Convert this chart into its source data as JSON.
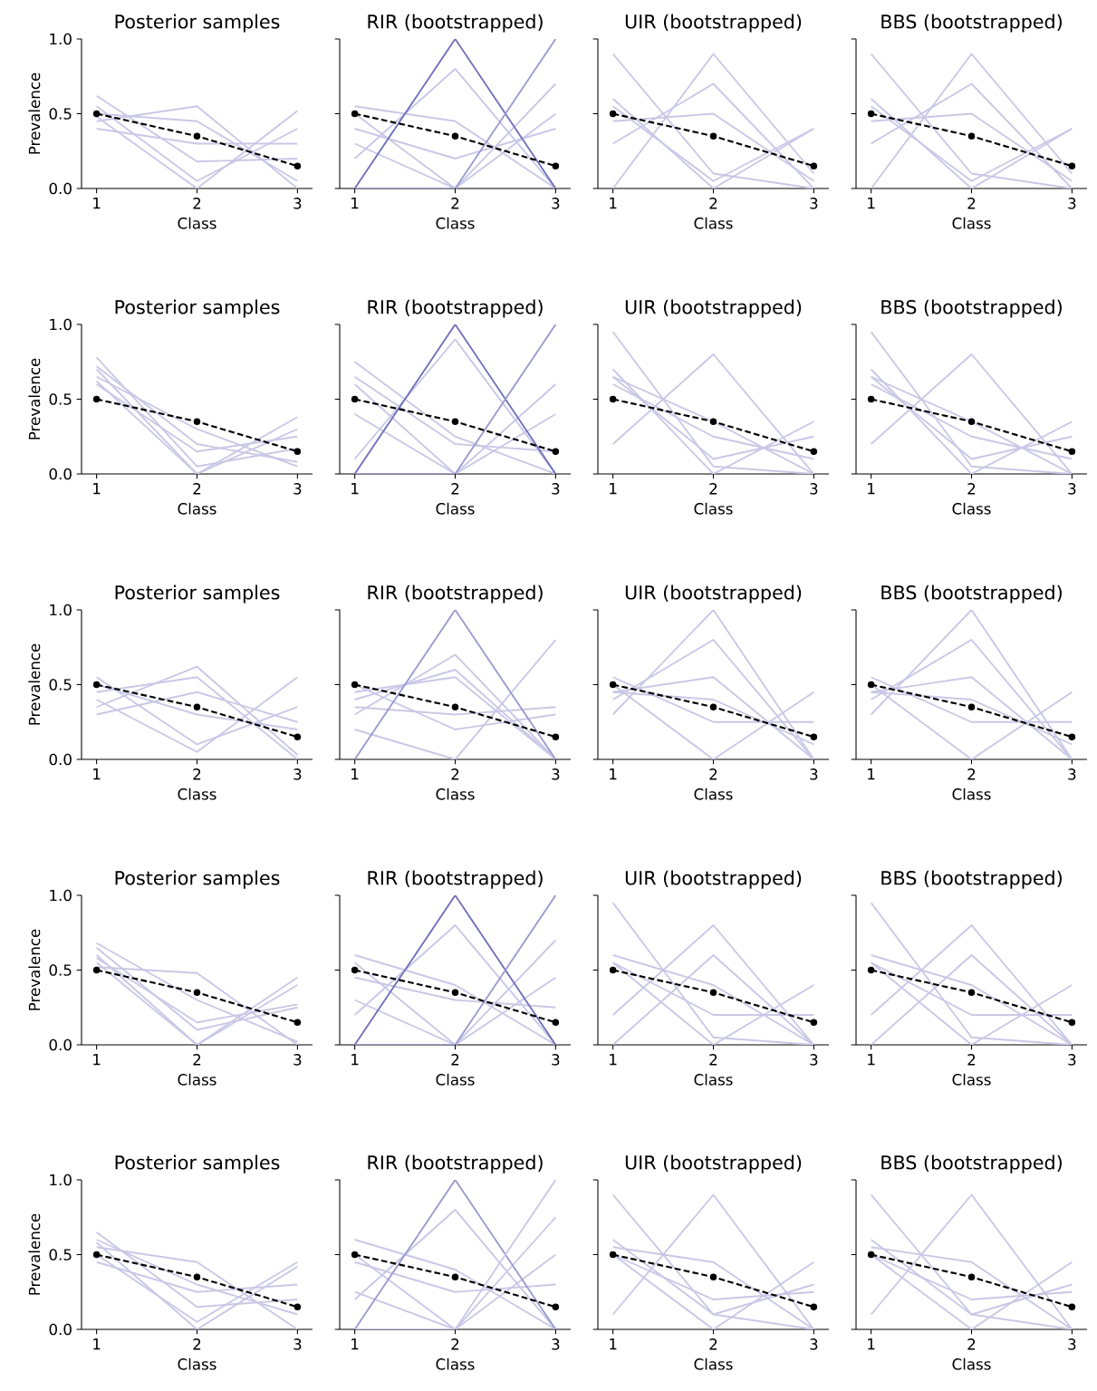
{
  "chart_data": [
    {
      "type": "line",
      "title": "Posterior samples",
      "xlabel": "Class",
      "ylabel": "Prevalence",
      "x": [
        1,
        2,
        3
      ],
      "xlim": [
        0.85,
        3.15
      ],
      "xticks": [
        1,
        2,
        3
      ],
      "ylim": [
        0,
        1
      ],
      "yticks": [
        {
          "value": 0,
          "label": "0.0"
        },
        {
          "value": 0.5,
          "label": "0.5"
        },
        {
          "value": 1,
          "label": "1.0"
        }
      ],
      "series": [
        {
          "color": "#c8c8e6",
          "values": [
            0.62,
            0.18,
            0.2
          ]
        },
        {
          "color": "#c8c8e6",
          "values": [
            0.45,
            0.55,
            0.0
          ]
        },
        {
          "color": "#c8c8e6",
          "values": [
            0.55,
            0.05,
            0.4
          ]
        },
        {
          "color": "#c8c8e6",
          "values": [
            0.4,
            0.3,
            0.3
          ]
        },
        {
          "color": "#c8c8e6",
          "values": [
            0.5,
            0.45,
            0.05
          ]
        },
        {
          "color": "#c8c8e6",
          "values": [
            0.48,
            0.0,
            0.52
          ]
        },
        {
          "color": "#000000",
          "values": [
            0.5,
            0.35,
            0.15
          ],
          "line_style": "dashed",
          "marker": "circle"
        }
      ]
    },
    {
      "type": "line",
      "title": "RIR (bootstrapped)",
      "xlabel": "Class",
      "tick_labels": "x",
      "x": [
        1,
        2,
        3
      ],
      "xlim": [
        0.85,
        3.15
      ],
      "xticks": [
        1,
        2,
        3
      ],
      "ylim": [
        0,
        1
      ],
      "yticks": [
        {
          "value": 0,
          "label": null
        },
        {
          "value": 0.5,
          "label": null
        },
        {
          "value": 1,
          "label": null
        }
      ],
      "series": [
        {
          "color": "#c8c8e6",
          "values": [
            0.55,
            0.45,
            0.0
          ]
        },
        {
          "color": "#c8c8e6",
          "values": [
            0.5,
            0.0,
            0.5
          ]
        },
        {
          "color": "#c8c8e6",
          "values": [
            0.2,
            0.8,
            0.0
          ]
        },
        {
          "color": "#c8c8e6",
          "values": [
            0.4,
            0.2,
            0.4
          ]
        },
        {
          "color": "#c8c8e6",
          "values": [
            0.3,
            0.0,
            0.7
          ]
        },
        {
          "color": "#7070bb",
          "values": [
            0.0,
            1.0,
            0.0
          ]
        },
        {
          "color": "#9a9acf",
          "values": [
            0.0,
            0.0,
            1.0
          ]
        },
        {
          "color": "#000000",
          "values": [
            0.5,
            0.35,
            0.15
          ],
          "line_style": "dashed",
          "marker": "circle"
        }
      ]
    },
    {
      "type": "line",
      "title": "UIR (bootstrapped)",
      "xlabel": "Class",
      "tick_labels": "x",
      "x": [
        1,
        2,
        3
      ],
      "xlim": [
        0.85,
        3.15
      ],
      "xticks": [
        1,
        2,
        3
      ],
      "ylim": [
        0,
        1
      ],
      "yticks": [
        {
          "value": 0,
          "label": null
        },
        {
          "value": 0.5,
          "label": null
        },
        {
          "value": 1,
          "label": null
        }
      ],
      "series": [
        {
          "color": "#c8c8e6",
          "values": [
            0.45,
            0.5,
            0.05
          ]
        },
        {
          "color": "#c8c8e6",
          "values": [
            0.55,
            0.05,
            0.4
          ]
        },
        {
          "color": "#c8c8e6",
          "values": [
            0.0,
            0.9,
            0.1
          ]
        },
        {
          "color": "#c8c8e6",
          "values": [
            0.9,
            0.1,
            0.0
          ]
        },
        {
          "color": "#c8c8e6",
          "values": [
            0.3,
            0.7,
            0.0
          ]
        },
        {
          "color": "#c8c8e6",
          "values": [
            0.6,
            0.0,
            0.4
          ]
        },
        {
          "color": "#000000",
          "values": [
            0.5,
            0.35,
            0.15
          ],
          "line_style": "dashed",
          "marker": "circle"
        }
      ]
    },
    {
      "type": "line",
      "title": "BBS (bootstrapped)",
      "xlabel": "Class",
      "tick_labels": "x",
      "x": [
        1,
        2,
        3
      ],
      "xlim": [
        0.85,
        3.15
      ],
      "xticks": [
        1,
        2,
        3
      ],
      "ylim": [
        0,
        1
      ],
      "yticks": [
        {
          "value": 0,
          "label": null
        },
        {
          "value": 0.5,
          "label": null
        },
        {
          "value": 1,
          "label": null
        }
      ],
      "series": [
        {
          "color": "#c8c8e6",
          "values": [
            0.45,
            0.5,
            0.05
          ]
        },
        {
          "color": "#c8c8e6",
          "values": [
            0.55,
            0.05,
            0.4
          ]
        },
        {
          "color": "#c8c8e6",
          "values": [
            0.0,
            0.9,
            0.1
          ]
        },
        {
          "color": "#c8c8e6",
          "values": [
            0.9,
            0.1,
            0.0
          ]
        },
        {
          "color": "#c8c8e6",
          "values": [
            0.3,
            0.7,
            0.0
          ]
        },
        {
          "color": "#c8c8e6",
          "values": [
            0.6,
            0.0,
            0.4
          ]
        },
        {
          "color": "#000000",
          "values": [
            0.5,
            0.35,
            0.15
          ],
          "line_style": "dashed",
          "marker": "circle"
        }
      ]
    },
    {
      "type": "line",
      "title": "Posterior samples",
      "xlabel": "Class",
      "ylabel": "Prevalence",
      "x": [
        1,
        2,
        3
      ],
      "xlim": [
        0.85,
        3.15
      ],
      "xticks": [
        1,
        2,
        3
      ],
      "ylim": [
        0,
        1
      ],
      "yticks": [
        {
          "value": 0,
          "label": "0.0"
        },
        {
          "value": 0.5,
          "label": "0.5"
        },
        {
          "value": 1,
          "label": "1.0"
        }
      ],
      "series": [
        {
          "color": "#c8c8e6",
          "values": [
            0.78,
            0.05,
            0.17
          ]
        },
        {
          "color": "#c8c8e6",
          "values": [
            0.65,
            0.3,
            0.05
          ]
        },
        {
          "color": "#c8c8e6",
          "values": [
            0.7,
            0.0,
            0.3
          ]
        },
        {
          "color": "#c8c8e6",
          "values": [
            0.6,
            0.15,
            0.25
          ]
        },
        {
          "color": "#c8c8e6",
          "values": [
            0.72,
            0.2,
            0.08
          ]
        },
        {
          "color": "#c8c8e6",
          "values": [
            0.62,
            0.0,
            0.38
          ]
        },
        {
          "color": "#000000",
          "values": [
            0.5,
            0.35,
            0.15
          ],
          "line_style": "dashed",
          "marker": "circle"
        }
      ]
    },
    {
      "type": "line",
      "title": "RIR (bootstrapped)",
      "xlabel": "Class",
      "tick_labels": "x",
      "x": [
        1,
        2,
        3
      ],
      "xlim": [
        0.85,
        3.15
      ],
      "xticks": [
        1,
        2,
        3
      ],
      "ylim": [
        0,
        1
      ],
      "yticks": [
        {
          "value": 0,
          "label": null
        },
        {
          "value": 0.5,
          "label": null
        },
        {
          "value": 1,
          "label": null
        }
      ],
      "series": [
        {
          "color": "#c8c8e6",
          "values": [
            0.75,
            0.25,
            0.0
          ]
        },
        {
          "color": "#c8c8e6",
          "values": [
            0.6,
            0.0,
            0.4
          ]
        },
        {
          "color": "#c8c8e6",
          "values": [
            0.1,
            0.9,
            0.0
          ]
        },
        {
          "color": "#c8c8e6",
          "values": [
            0.65,
            0.2,
            0.15
          ]
        },
        {
          "color": "#c8c8e6",
          "values": [
            0.4,
            0.0,
            0.6
          ]
        },
        {
          "color": "#7070bb",
          "values": [
            0.0,
            1.0,
            0.0
          ]
        },
        {
          "color": "#9a9acf",
          "values": [
            0.0,
            0.0,
            1.0
          ]
        },
        {
          "color": "#000000",
          "values": [
            0.5,
            0.35,
            0.15
          ],
          "line_style": "dashed",
          "marker": "circle"
        }
      ]
    },
    {
      "type": "line",
      "title": "UIR (bootstrapped)",
      "xlabel": "Class",
      "tick_labels": "x",
      "x": [
        1,
        2,
        3
      ],
      "xlim": [
        0.85,
        3.15
      ],
      "xticks": [
        1,
        2,
        3
      ],
      "ylim": [
        0,
        1
      ],
      "yticks": [
        {
          "value": 0,
          "label": null
        },
        {
          "value": 0.5,
          "label": null
        },
        {
          "value": 1,
          "label": null
        }
      ],
      "series": [
        {
          "color": "#c8c8e6",
          "values": [
            0.65,
            0.35,
            0.0
          ]
        },
        {
          "color": "#c8c8e6",
          "values": [
            0.7,
            0.0,
            0.35
          ]
        },
        {
          "color": "#c8c8e6",
          "values": [
            0.95,
            0.05,
            0.0
          ]
        },
        {
          "color": "#c8c8e6",
          "values": [
            0.2,
            0.8,
            0.0
          ]
        },
        {
          "color": "#c8c8e6",
          "values": [
            0.65,
            0.1,
            0.25
          ]
        },
        {
          "color": "#c8c8e6",
          "values": [
            0.6,
            0.25,
            0.1
          ]
        },
        {
          "color": "#000000",
          "values": [
            0.5,
            0.35,
            0.15
          ],
          "line_style": "dashed",
          "marker": "circle"
        }
      ]
    },
    {
      "type": "line",
      "title": "BBS (bootstrapped)",
      "xlabel": "Class",
      "tick_labels": "x",
      "x": [
        1,
        2,
        3
      ],
      "xlim": [
        0.85,
        3.15
      ],
      "xticks": [
        1,
        2,
        3
      ],
      "ylim": [
        0,
        1
      ],
      "yticks": [
        {
          "value": 0,
          "label": null
        },
        {
          "value": 0.5,
          "label": null
        },
        {
          "value": 1,
          "label": null
        }
      ],
      "series": [
        {
          "color": "#c8c8e6",
          "values": [
            0.65,
            0.35,
            0.0
          ]
        },
        {
          "color": "#c8c8e6",
          "values": [
            0.7,
            0.0,
            0.35
          ]
        },
        {
          "color": "#c8c8e6",
          "values": [
            0.95,
            0.05,
            0.0
          ]
        },
        {
          "color": "#c8c8e6",
          "values": [
            0.2,
            0.8,
            0.0
          ]
        },
        {
          "color": "#c8c8e6",
          "values": [
            0.65,
            0.1,
            0.25
          ]
        },
        {
          "color": "#c8c8e6",
          "values": [
            0.6,
            0.25,
            0.1
          ]
        },
        {
          "color": "#000000",
          "values": [
            0.5,
            0.35,
            0.15
          ],
          "line_style": "dashed",
          "marker": "circle"
        }
      ]
    },
    {
      "type": "line",
      "title": "Posterior samples",
      "xlabel": "Class",
      "ylabel": "Prevalence",
      "x": [
        1,
        2,
        3
      ],
      "xlim": [
        0.85,
        3.15
      ],
      "xticks": [
        1,
        2,
        3
      ],
      "ylim": [
        0,
        1
      ],
      "yticks": [
        {
          "value": 0,
          "label": "0.0"
        },
        {
          "value": 0.5,
          "label": "0.5"
        },
        {
          "value": 1,
          "label": "1.0"
        }
      ],
      "series": [
        {
          "color": "#c8c8e6",
          "values": [
            0.45,
            0.55,
            0.0
          ]
        },
        {
          "color": "#c8c8e6",
          "values": [
            0.35,
            0.62,
            0.03
          ]
        },
        {
          "color": "#c8c8e6",
          "values": [
            0.55,
            0.1,
            0.35
          ]
        },
        {
          "color": "#c8c8e6",
          "values": [
            0.4,
            0.05,
            0.55
          ]
        },
        {
          "color": "#c8c8e6",
          "values": [
            0.3,
            0.45,
            0.25
          ]
        },
        {
          "color": "#c8c8e6",
          "values": [
            0.5,
            0.3,
            0.2
          ]
        },
        {
          "color": "#000000",
          "values": [
            0.5,
            0.35,
            0.15
          ],
          "line_style": "dashed",
          "marker": "circle"
        }
      ]
    },
    {
      "type": "line",
      "title": "RIR (bootstrapped)",
      "xlabel": "Class",
      "tick_labels": "x",
      "x": [
        1,
        2,
        3
      ],
      "xlim": [
        0.85,
        3.15
      ],
      "xticks": [
        1,
        2,
        3
      ],
      "ylim": [
        0,
        1
      ],
      "yticks": [
        {
          "value": 0,
          "label": null
        },
        {
          "value": 0.5,
          "label": null
        },
        {
          "value": 1,
          "label": null
        }
      ],
      "series": [
        {
          "color": "#c8c8e6",
          "values": [
            0.45,
            0.55,
            0.0
          ]
        },
        {
          "color": "#c8c8e6",
          "values": [
            0.4,
            0.6,
            0.0
          ]
        },
        {
          "color": "#c8c8e6",
          "values": [
            0.3,
            0.7,
            0.0
          ]
        },
        {
          "color": "#c8c8e6",
          "values": [
            0.5,
            0.2,
            0.3
          ]
        },
        {
          "color": "#c8c8e6",
          "values": [
            0.2,
            0.0,
            0.8
          ]
        },
        {
          "color": "#c8c8e6",
          "values": [
            0.35,
            0.3,
            0.35
          ]
        },
        {
          "color": "#9a9acf",
          "values": [
            0.0,
            1.0,
            0.0
          ]
        },
        {
          "color": "#000000",
          "values": [
            0.5,
            0.35,
            0.15
          ],
          "line_style": "dashed",
          "marker": "circle"
        }
      ]
    },
    {
      "type": "line",
      "title": "UIR (bootstrapped)",
      "xlabel": "Class",
      "tick_labels": "x",
      "x": [
        1,
        2,
        3
      ],
      "xlim": [
        0.85,
        3.15
      ],
      "xticks": [
        1,
        2,
        3
      ],
      "ylim": [
        0,
        1
      ],
      "yticks": [
        {
          "value": 0,
          "label": null
        },
        {
          "value": 0.5,
          "label": null
        },
        {
          "value": 1,
          "label": null
        }
      ],
      "series": [
        {
          "color": "#c8c8e6",
          "values": [
            0.45,
            0.55,
            0.0
          ]
        },
        {
          "color": "#c8c8e6",
          "values": [
            0.4,
            0.8,
            0.0
          ]
        },
        {
          "color": "#c8c8e6",
          "values": [
            0.5,
            0.0,
            0.45
          ]
        },
        {
          "color": "#c8c8e6",
          "values": [
            0.3,
            1.0,
            0.0
          ]
        },
        {
          "color": "#c8c8e6",
          "values": [
            0.55,
            0.25,
            0.25
          ]
        },
        {
          "color": "#c8c8e6",
          "values": [
            0.45,
            0.4,
            0.1
          ]
        },
        {
          "color": "#000000",
          "values": [
            0.5,
            0.35,
            0.15
          ],
          "line_style": "dashed",
          "marker": "circle"
        }
      ]
    },
    {
      "type": "line",
      "title": "BBS (bootstrapped)",
      "xlabel": "Class",
      "tick_labels": "x",
      "x": [
        1,
        2,
        3
      ],
      "xlim": [
        0.85,
        3.15
      ],
      "xticks": [
        1,
        2,
        3
      ],
      "ylim": [
        0,
        1
      ],
      "yticks": [
        {
          "value": 0,
          "label": null
        },
        {
          "value": 0.5,
          "label": null
        },
        {
          "value": 1,
          "label": null
        }
      ],
      "series": [
        {
          "color": "#c8c8e6",
          "values": [
            0.45,
            0.55,
            0.0
          ]
        },
        {
          "color": "#c8c8e6",
          "values": [
            0.4,
            0.8,
            0.0
          ]
        },
        {
          "color": "#c8c8e6",
          "values": [
            0.5,
            0.0,
            0.45
          ]
        },
        {
          "color": "#c8c8e6",
          "values": [
            0.3,
            1.0,
            0.0
          ]
        },
        {
          "color": "#c8c8e6",
          "values": [
            0.55,
            0.25,
            0.25
          ]
        },
        {
          "color": "#c8c8e6",
          "values": [
            0.45,
            0.4,
            0.1
          ]
        },
        {
          "color": "#000000",
          "values": [
            0.5,
            0.35,
            0.15
          ],
          "line_style": "dashed",
          "marker": "circle"
        }
      ]
    },
    {
      "type": "line",
      "title": "Posterior samples",
      "xlabel": "Class",
      "ylabel": "Prevalence",
      "x": [
        1,
        2,
        3
      ],
      "xlim": [
        0.85,
        3.15
      ],
      "xticks": [
        1,
        2,
        3
      ],
      "ylim": [
        0,
        1
      ],
      "yticks": [
        {
          "value": 0,
          "label": "0.0"
        },
        {
          "value": 0.5,
          "label": "0.5"
        },
        {
          "value": 1,
          "label": "1.0"
        }
      ],
      "series": [
        {
          "color": "#c8c8e6",
          "values": [
            0.68,
            0.3,
            0.02
          ]
        },
        {
          "color": "#c8c8e6",
          "values": [
            0.6,
            0.0,
            0.4
          ]
        },
        {
          "color": "#c8c8e6",
          "values": [
            0.52,
            0.48,
            0.0
          ]
        },
        {
          "color": "#c8c8e6",
          "values": [
            0.58,
            0.15,
            0.27
          ]
        },
        {
          "color": "#c8c8e6",
          "values": [
            0.65,
            0.1,
            0.25
          ]
        },
        {
          "color": "#c8c8e6",
          "values": [
            0.55,
            0.0,
            0.45
          ]
        },
        {
          "color": "#000000",
          "values": [
            0.5,
            0.35,
            0.15
          ],
          "line_style": "dashed",
          "marker": "circle"
        }
      ]
    },
    {
      "type": "line",
      "title": "RIR (bootstrapped)",
      "xlabel": "Class",
      "tick_labels": "x",
      "x": [
        1,
        2,
        3
      ],
      "xlim": [
        0.85,
        3.15
      ],
      "xticks": [
        1,
        2,
        3
      ],
      "ylim": [
        0,
        1
      ],
      "yticks": [
        {
          "value": 0,
          "label": null
        },
        {
          "value": 0.5,
          "label": null
        },
        {
          "value": 1,
          "label": null
        }
      ],
      "series": [
        {
          "color": "#c8c8e6",
          "values": [
            0.6,
            0.4,
            0.0
          ]
        },
        {
          "color": "#c8c8e6",
          "values": [
            0.55,
            0.0,
            0.45
          ]
        },
        {
          "color": "#c8c8e6",
          "values": [
            0.2,
            0.8,
            0.0
          ]
        },
        {
          "color": "#c8c8e6",
          "values": [
            0.45,
            0.3,
            0.25
          ]
        },
        {
          "color": "#c8c8e6",
          "values": [
            0.3,
            0.0,
            0.7
          ]
        },
        {
          "color": "#7070bb",
          "values": [
            0.0,
            1.0,
            0.0
          ]
        },
        {
          "color": "#9a9acf",
          "values": [
            0.0,
            0.0,
            1.0
          ]
        },
        {
          "color": "#000000",
          "values": [
            0.5,
            0.35,
            0.15
          ],
          "line_style": "dashed",
          "marker": "circle"
        }
      ]
    },
    {
      "type": "line",
      "title": "UIR (bootstrapped)",
      "xlabel": "Class",
      "tick_labels": "x",
      "x": [
        1,
        2,
        3
      ],
      "xlim": [
        0.85,
        3.15
      ],
      "xticks": [
        1,
        2,
        3
      ],
      "ylim": [
        0,
        1
      ],
      "yticks": [
        {
          "value": 0,
          "label": null
        },
        {
          "value": 0.5,
          "label": null
        },
        {
          "value": 1,
          "label": null
        }
      ],
      "series": [
        {
          "color": "#c8c8e6",
          "values": [
            0.6,
            0.4,
            0.0
          ]
        },
        {
          "color": "#c8c8e6",
          "values": [
            0.55,
            0.0,
            0.4
          ]
        },
        {
          "color": "#c8c8e6",
          "values": [
            0.95,
            0.05,
            0.0
          ]
        },
        {
          "color": "#c8c8e6",
          "values": [
            0.2,
            0.8,
            0.0
          ]
        },
        {
          "color": "#c8c8e6",
          "values": [
            0.55,
            0.2,
            0.2
          ]
        },
        {
          "color": "#c8c8e6",
          "values": [
            0.0,
            0.6,
            0.0
          ]
        },
        {
          "color": "#000000",
          "values": [
            0.5,
            0.35,
            0.15
          ],
          "line_style": "dashed",
          "marker": "circle"
        }
      ]
    },
    {
      "type": "line",
      "title": "BBS (bootstrapped)",
      "xlabel": "Class",
      "tick_labels": "x",
      "x": [
        1,
        2,
        3
      ],
      "xlim": [
        0.85,
        3.15
      ],
      "xticks": [
        1,
        2,
        3
      ],
      "ylim": [
        0,
        1
      ],
      "yticks": [
        {
          "value": 0,
          "label": null
        },
        {
          "value": 0.5,
          "label": null
        },
        {
          "value": 1,
          "label": null
        }
      ],
      "series": [
        {
          "color": "#c8c8e6",
          "values": [
            0.6,
            0.4,
            0.0
          ]
        },
        {
          "color": "#c8c8e6",
          "values": [
            0.55,
            0.0,
            0.4
          ]
        },
        {
          "color": "#c8c8e6",
          "values": [
            0.95,
            0.05,
            0.0
          ]
        },
        {
          "color": "#c8c8e6",
          "values": [
            0.2,
            0.8,
            0.0
          ]
        },
        {
          "color": "#c8c8e6",
          "values": [
            0.55,
            0.2,
            0.2
          ]
        },
        {
          "color": "#c8c8e6",
          "values": [
            0.0,
            0.6,
            0.0
          ]
        },
        {
          "color": "#000000",
          "values": [
            0.5,
            0.35,
            0.15
          ],
          "line_style": "dashed",
          "marker": "circle"
        }
      ]
    },
    {
      "type": "line",
      "title": "Posterior samples",
      "xlabel": "Class",
      "ylabel": "Prevalence",
      "x": [
        1,
        2,
        3
      ],
      "xlim": [
        0.85,
        3.15
      ],
      "xticks": [
        1,
        2,
        3
      ],
      "ylim": [
        0,
        1
      ],
      "yticks": [
        {
          "value": 0,
          "label": "0.0"
        },
        {
          "value": 0.5,
          "label": "0.5"
        },
        {
          "value": 1,
          "label": "1.0"
        }
      ],
      "series": [
        {
          "color": "#c8c8e6",
          "values": [
            0.65,
            0.15,
            0.2
          ]
        },
        {
          "color": "#c8c8e6",
          "values": [
            0.55,
            0.45,
            0.0
          ]
        },
        {
          "color": "#c8c8e6",
          "values": [
            0.5,
            0.05,
            0.45
          ]
        },
        {
          "color": "#c8c8e6",
          "values": [
            0.6,
            0.3,
            0.1
          ]
        },
        {
          "color": "#c8c8e6",
          "values": [
            0.45,
            0.25,
            0.3
          ]
        },
        {
          "color": "#c8c8e6",
          "values": [
            0.58,
            0.0,
            0.42
          ]
        },
        {
          "color": "#000000",
          "values": [
            0.5,
            0.35,
            0.15
          ],
          "line_style": "dashed",
          "marker": "circle"
        }
      ]
    },
    {
      "type": "line",
      "title": "RIR (bootstrapped)",
      "xlabel": "Class",
      "tick_labels": "x",
      "x": [
        1,
        2,
        3
      ],
      "xlim": [
        0.85,
        3.15
      ],
      "xticks": [
        1,
        2,
        3
      ],
      "ylim": [
        0,
        1
      ],
      "yticks": [
        {
          "value": 0,
          "label": null
        },
        {
          "value": 0.5,
          "label": null
        },
        {
          "value": 1,
          "label": null
        }
      ],
      "series": [
        {
          "color": "#c8c8e6",
          "values": [
            0.6,
            0.4,
            0.0
          ]
        },
        {
          "color": "#c8c8e6",
          "values": [
            0.5,
            0.0,
            0.5
          ]
        },
        {
          "color": "#c8c8e6",
          "values": [
            0.2,
            0.8,
            0.0
          ]
        },
        {
          "color": "#c8c8e6",
          "values": [
            0.45,
            0.25,
            0.3
          ]
        },
        {
          "color": "#c8c8e6",
          "values": [
            0.25,
            0.0,
            0.75
          ]
        },
        {
          "color": "#9a9acf",
          "values": [
            0.0,
            1.0,
            0.0
          ]
        },
        {
          "color": "#c8c8e6",
          "values": [
            0.0,
            0.0,
            1.0
          ]
        },
        {
          "color": "#000000",
          "values": [
            0.5,
            0.35,
            0.15
          ],
          "line_style": "dashed",
          "marker": "circle"
        }
      ]
    },
    {
      "type": "line",
      "title": "UIR (bootstrapped)",
      "xlabel": "Class",
      "tick_labels": "x",
      "x": [
        1,
        2,
        3
      ],
      "xlim": [
        0.85,
        3.15
      ],
      "xticks": [
        1,
        2,
        3
      ],
      "ylim": [
        0,
        1
      ],
      "yticks": [
        {
          "value": 0,
          "label": null
        },
        {
          "value": 0.5,
          "label": null
        },
        {
          "value": 1,
          "label": null
        }
      ],
      "series": [
        {
          "color": "#c8c8e6",
          "values": [
            0.55,
            0.45,
            0.0
          ]
        },
        {
          "color": "#c8c8e6",
          "values": [
            0.5,
            0.0,
            0.45
          ]
        },
        {
          "color": "#c8c8e6",
          "values": [
            0.9,
            0.1,
            0.0
          ]
        },
        {
          "color": "#c8c8e6",
          "values": [
            0.1,
            0.9,
            0.0
          ]
        },
        {
          "color": "#c8c8e6",
          "values": [
            0.5,
            0.2,
            0.25
          ]
        },
        {
          "color": "#c8c8e6",
          "values": [
            0.6,
            0.1,
            0.3
          ]
        },
        {
          "color": "#000000",
          "values": [
            0.5,
            0.35,
            0.15
          ],
          "line_style": "dashed",
          "marker": "circle"
        }
      ]
    },
    {
      "type": "line",
      "title": "BBS (bootstrapped)",
      "xlabel": "Class",
      "tick_labels": "x",
      "x": [
        1,
        2,
        3
      ],
      "xlim": [
        0.85,
        3.15
      ],
      "xticks": [
        1,
        2,
        3
      ],
      "ylim": [
        0,
        1
      ],
      "yticks": [
        {
          "value": 0,
          "label": null
        },
        {
          "value": 0.5,
          "label": null
        },
        {
          "value": 1,
          "label": null
        }
      ],
      "series": [
        {
          "color": "#c8c8e6",
          "values": [
            0.55,
            0.45,
            0.0
          ]
        },
        {
          "color": "#c8c8e6",
          "values": [
            0.5,
            0.0,
            0.45
          ]
        },
        {
          "color": "#c8c8e6",
          "values": [
            0.9,
            0.1,
            0.0
          ]
        },
        {
          "color": "#c8c8e6",
          "values": [
            0.1,
            0.9,
            0.0
          ]
        },
        {
          "color": "#c8c8e6",
          "values": [
            0.5,
            0.2,
            0.25
          ]
        },
        {
          "color": "#c8c8e6",
          "values": [
            0.6,
            0.1,
            0.3
          ]
        },
        {
          "color": "#000000",
          "values": [
            0.5,
            0.35,
            0.15
          ],
          "line_style": "dashed",
          "marker": "circle"
        }
      ]
    }
  ]
}
